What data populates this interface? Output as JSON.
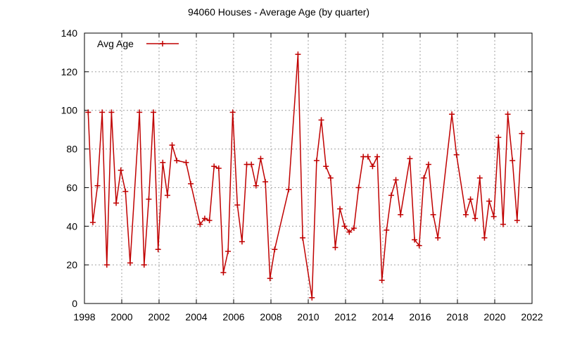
{
  "chart_data": {
    "type": "line",
    "title": "94060 Houses - Average Age (by quarter)",
    "xlabel": "",
    "ylabel": "",
    "xlim": [
      1998,
      2022
    ],
    "ylim": [
      0,
      140
    ],
    "x_ticks": [
      1998,
      2000,
      2002,
      2004,
      2006,
      2008,
      2010,
      2012,
      2014,
      2016,
      2018,
      2020,
      2022
    ],
    "y_ticks": [
      0,
      20,
      40,
      60,
      80,
      100,
      120,
      140
    ],
    "grid": true,
    "legend_position": "top-left",
    "series": [
      {
        "name": "Avg Age",
        "color": "#c00000",
        "marker": "plus",
        "points": [
          [
            1998.2,
            99
          ],
          [
            1998.45,
            42
          ],
          [
            1998.7,
            61
          ],
          [
            1998.95,
            99
          ],
          [
            1999.2,
            20
          ],
          [
            1999.45,
            99
          ],
          [
            1999.7,
            52
          ],
          [
            1999.95,
            69
          ],
          [
            2000.2,
            58
          ],
          [
            2000.45,
            21
          ],
          [
            2000.95,
            99
          ],
          [
            2001.2,
            20
          ],
          [
            2001.45,
            54
          ],
          [
            2001.7,
            99
          ],
          [
            2001.95,
            28
          ],
          [
            2002.2,
            73
          ],
          [
            2002.45,
            56
          ],
          [
            2002.7,
            82
          ],
          [
            2002.95,
            74
          ],
          [
            2003.45,
            73
          ],
          [
            2003.7,
            62
          ],
          [
            2004.2,
            41
          ],
          [
            2004.45,
            44
          ],
          [
            2004.7,
            43
          ],
          [
            2004.95,
            71
          ],
          [
            2005.2,
            70
          ],
          [
            2005.45,
            16
          ],
          [
            2005.7,
            27
          ],
          [
            2005.95,
            99
          ],
          [
            2006.2,
            51
          ],
          [
            2006.45,
            32
          ],
          [
            2006.7,
            72
          ],
          [
            2006.95,
            72
          ],
          [
            2007.2,
            61
          ],
          [
            2007.45,
            75
          ],
          [
            2007.7,
            63
          ],
          [
            2007.95,
            13
          ],
          [
            2008.2,
            28
          ],
          [
            2008.95,
            59
          ],
          [
            2009.45,
            129
          ],
          [
            2009.7,
            34
          ],
          [
            2010.2,
            3
          ],
          [
            2010.45,
            74
          ],
          [
            2010.7,
            95
          ],
          [
            2010.95,
            71
          ],
          [
            2011.2,
            65
          ],
          [
            2011.45,
            29
          ],
          [
            2011.7,
            49
          ],
          [
            2011.95,
            40
          ],
          [
            2012.2,
            37
          ],
          [
            2012.45,
            39
          ],
          [
            2012.7,
            60
          ],
          [
            2012.95,
            76
          ],
          [
            2013.2,
            76
          ],
          [
            2013.45,
            71
          ],
          [
            2013.7,
            76
          ],
          [
            2013.95,
            12
          ],
          [
            2014.2,
            38
          ],
          [
            2014.45,
            56
          ],
          [
            2014.7,
            64
          ],
          [
            2014.95,
            46
          ],
          [
            2015.45,
            75
          ],
          [
            2015.7,
            33
          ],
          [
            2015.95,
            30
          ],
          [
            2016.2,
            65
          ],
          [
            2016.45,
            72
          ],
          [
            2016.7,
            46
          ],
          [
            2016.95,
            34
          ],
          [
            2017.7,
            98
          ],
          [
            2017.95,
            77
          ],
          [
            2018.45,
            46
          ],
          [
            2018.7,
            54
          ],
          [
            2018.95,
            44
          ],
          [
            2019.2,
            65
          ],
          [
            2019.45,
            34
          ],
          [
            2019.7,
            53
          ],
          [
            2019.95,
            45
          ],
          [
            2020.2,
            86
          ],
          [
            2020.45,
            41
          ],
          [
            2020.7,
            98
          ],
          [
            2020.95,
            74
          ],
          [
            2021.2,
            43
          ],
          [
            2021.45,
            88
          ]
        ]
      }
    ]
  }
}
